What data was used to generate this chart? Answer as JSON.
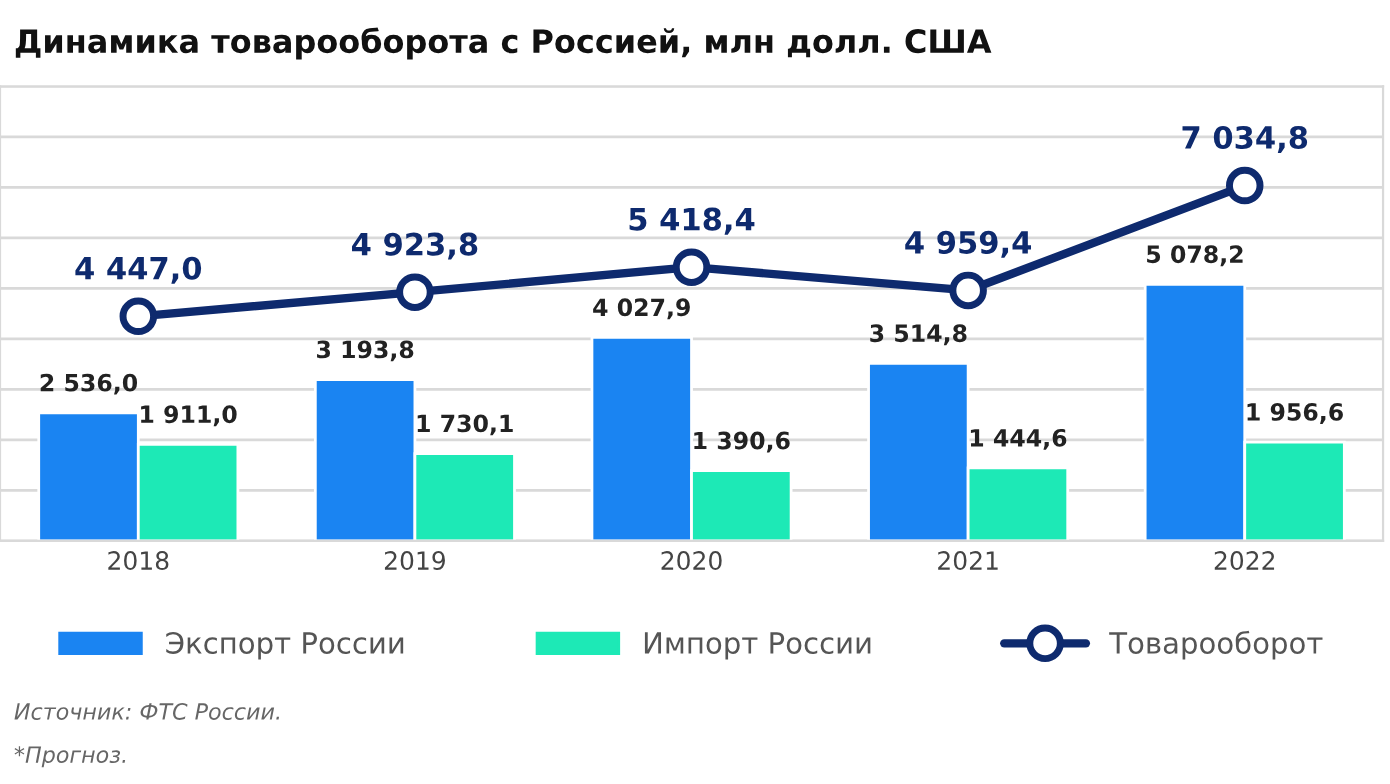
{
  "chart_data": {
    "type": "bar",
    "title": "Динамика товарооборота с Россией, млн долл. США",
    "categories": [
      "2018",
      "2019",
      "2020",
      "2021",
      "2022"
    ],
    "series": [
      {
        "name": "Экспорт России",
        "color": "#1a84f2",
        "values": [
          2536.0,
          3193.8,
          4027.9,
          3514.8,
          5078.2
        ],
        "value_labels": [
          "2 536,0",
          "3 193,8",
          "4 027,9",
          "3 514,8",
          "5 078,2"
        ]
      },
      {
        "name": "Импорт России",
        "color": "#1de9b6",
        "values": [
          1911.0,
          1730.1,
          1390.6,
          1444.6,
          1956.6
        ],
        "value_labels": [
          "1 911,0",
          "1 730,1",
          "1 390,6",
          "1 444,6",
          "1 956,6"
        ]
      },
      {
        "name": "Товарооборот",
        "type": "line",
        "color": "#0e2a6e",
        "values": [
          4447.0,
          4923.8,
          5418.4,
          4959.4,
          7034.8
        ],
        "value_labels": [
          "4 447,0",
          "4 923,8",
          "5 418,4",
          "4 959,4",
          "7 034,8"
        ]
      }
    ],
    "ylim": [
      0,
      9000
    ],
    "yticks": [
      {
        "value": 0,
        "label": null
      },
      {
        "value": 1000,
        "label": null
      },
      {
        "value": 2000,
        "label": null
      },
      {
        "value": 3000,
        "label": null
      },
      {
        "value": 4000,
        "label": null
      },
      {
        "value": 5000,
        "label": null
      },
      {
        "value": 6000,
        "label": null
      },
      {
        "value": 7000,
        "label": null
      },
      {
        "value": 8000,
        "label": null
      },
      {
        "value": 9000,
        "label": null
      }
    ],
    "grid": "y",
    "legend": "bottom",
    "marker": "circle",
    "line_style": "solid",
    "tick_labels": "x",
    "annotations": [
      "Источник: ФТС России.",
      "*Прогноз."
    ]
  }
}
